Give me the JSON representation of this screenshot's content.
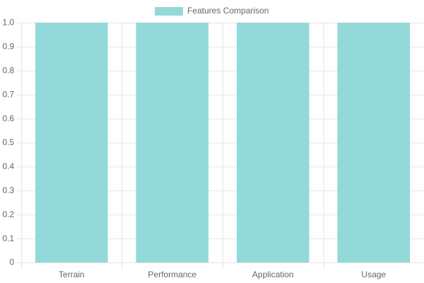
{
  "chart_data": {
    "type": "bar",
    "categories": [
      "Terrain",
      "Performance",
      "Application",
      "Usage"
    ],
    "series": [
      {
        "name": "Features Comparison",
        "color": "#93d9d9",
        "values": [
          1,
          1,
          1,
          1
        ]
      }
    ],
    "ylim": [
      0,
      1
    ],
    "yticks": [
      0,
      0.1,
      0.2,
      0.3,
      0.4,
      0.5,
      0.6,
      0.7,
      0.8,
      0.9,
      {
        "value": 1,
        "label": "1.0"
      }
    ],
    "grid": true
  }
}
